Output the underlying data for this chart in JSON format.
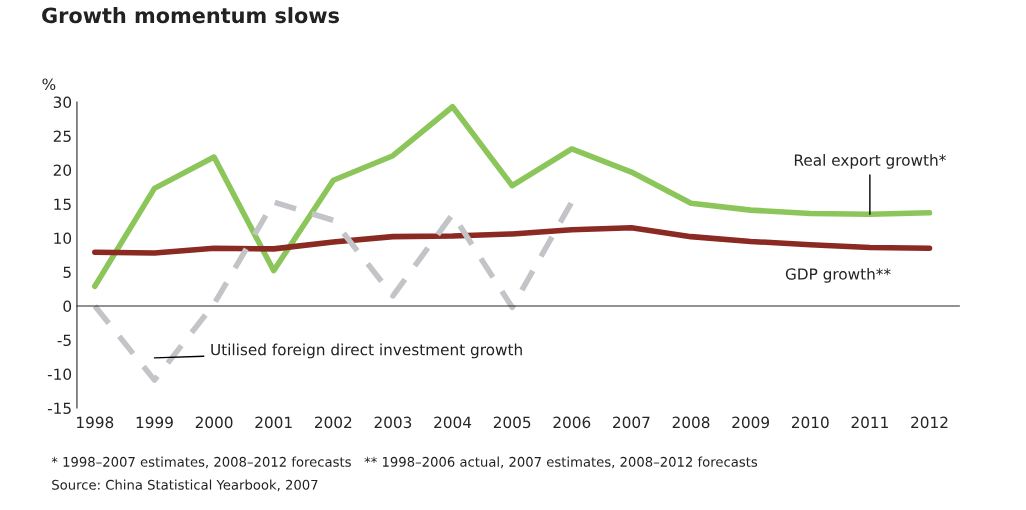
{
  "chart_data": {
    "type": "line",
    "title": "Growth momentum slows",
    "ylabel": "%",
    "categories": [
      "1998",
      "1999",
      "2000",
      "2001",
      "2002",
      "2003",
      "2004",
      "2005",
      "2006",
      "2007",
      "2008",
      "2009",
      "2010",
      "2011",
      "2012"
    ],
    "series": [
      {
        "name": "Real export growth*",
        "color": "#8cc65a",
        "values": [
          2.9,
          17.3,
          21.9,
          5.2,
          18.5,
          22.1,
          29.3,
          17.7,
          23.1,
          19.7,
          15.1,
          14.1,
          13.6,
          13.5,
          13.7
        ]
      },
      {
        "name": "GDP growth**",
        "color": "#8b2a22",
        "values": [
          7.9,
          7.8,
          8.5,
          8.4,
          9.4,
          10.2,
          10.3,
          10.6,
          11.2,
          11.5,
          10.2,
          9.5,
          9.0,
          8.6,
          8.5
        ]
      },
      {
        "name": "Utilised foreign direct investment growth",
        "color": "#c3c4c8",
        "line_style": "dashed",
        "values": [
          0,
          -10.9,
          0.3,
          15.3,
          12.6,
          1.5,
          13.5,
          -0.2,
          15.3,
          null,
          null,
          null,
          null,
          null,
          null
        ]
      }
    ],
    "ylim": [
      -15,
      30
    ],
    "yticks": [
      -15,
      -10,
      -5,
      0,
      5,
      10,
      15,
      20,
      25,
      30
    ],
    "legend": false,
    "annotations": [
      "* 1998–2007 estimates, 2008–2012 forecasts   ** 1998–2006 actual, 2007 estimates, 2008–2012 forecasts",
      "Source: China Statistical Yearbook, 2007"
    ]
  }
}
